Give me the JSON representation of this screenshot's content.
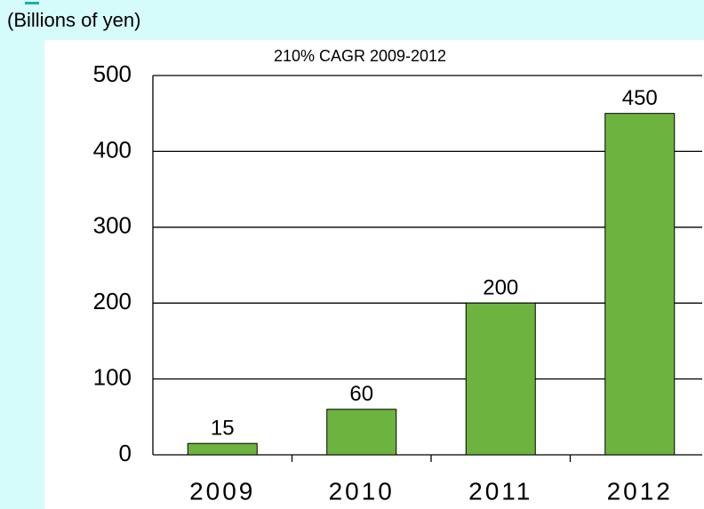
{
  "chart_data": {
    "type": "bar",
    "title": "210% CAGR 2009-2012",
    "ylabel": "(Billions of yen)",
    "categories": [
      "2009",
      "2010",
      "2011",
      "2012"
    ],
    "values": [
      15,
      60,
      200,
      450
    ],
    "color": "#6db33f",
    "ylim": [
      0,
      500
    ],
    "yticks": [
      0,
      100,
      200,
      300,
      400,
      500
    ],
    "grid": true
  }
}
